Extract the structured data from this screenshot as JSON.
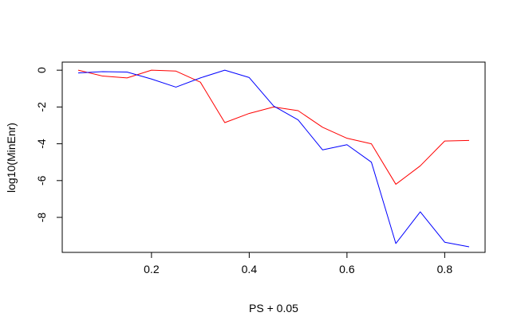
{
  "chart_data": {
    "type": "line",
    "title": "",
    "xlabel": "PS + 0.05",
    "ylabel": "log10(MinEnr)",
    "xlim": [
      0.05,
      0.85
    ],
    "ylim": [
      -9.6,
      0.05
    ],
    "x_ticks": [
      0.2,
      0.4,
      0.6,
      0.8
    ],
    "x_tick_labels": [
      "0.2",
      "0.4",
      "0.6",
      "0.8"
    ],
    "y_ticks": [
      0,
      -2,
      -4,
      -6,
      -8
    ],
    "y_tick_labels": [
      "0",
      "-2",
      "-4",
      "-6",
      "-8"
    ],
    "grid": false,
    "legend": "none",
    "x": [
      0.05,
      0.1,
      0.15,
      0.2,
      0.25,
      0.3,
      0.35,
      0.4,
      0.45,
      0.5,
      0.55,
      0.6,
      0.65,
      0.7,
      0.75,
      0.8,
      0.85
    ],
    "series": [
      {
        "color": "#ff0000",
        "values": [
          0.0,
          -0.32,
          -0.42,
          0.0,
          -0.05,
          -0.65,
          -2.85,
          -2.35,
          -2.0,
          -2.2,
          -3.1,
          -3.7,
          -4.0,
          -6.2,
          -5.2,
          -3.85,
          -3.82
        ]
      },
      {
        "color": "#0000ff",
        "values": [
          -0.15,
          -0.08,
          -0.1,
          -0.48,
          -0.92,
          -0.42,
          0.0,
          -0.4,
          -1.95,
          -2.7,
          -4.33,
          -4.05,
          -5.0,
          -9.42,
          -7.7,
          -9.35,
          -9.6
        ]
      }
    ]
  }
}
